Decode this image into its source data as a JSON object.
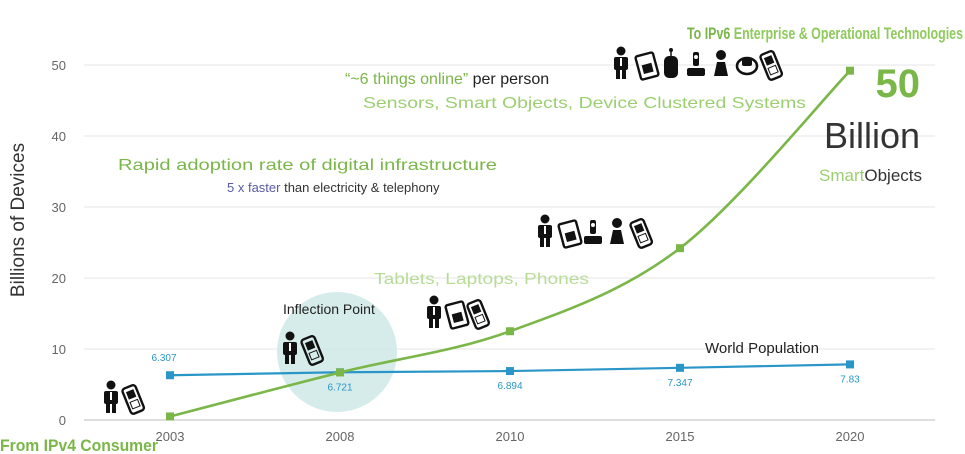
{
  "chart_data": {
    "type": "line",
    "ylabel": "Billions of Devices",
    "ylim": [
      0,
      50
    ],
    "yticks": [
      0,
      10,
      20,
      30,
      40,
      50
    ],
    "categories": [
      "2003",
      "2008",
      "2010",
      "2015",
      "2020"
    ],
    "grid": true,
    "series": [
      {
        "name": "World Population",
        "color": "#2a96c8",
        "values": [
          6.307,
          6.721,
          6.894,
          7.347,
          7.83
        ],
        "labels": [
          "6.307",
          "6.721",
          "6.894",
          "7.347",
          "7.83"
        ]
      },
      {
        "name": "",
        "color": "#7ab648",
        "values": [
          0.5,
          6.7,
          12.5,
          24.2,
          49.2
        ]
      }
    ]
  },
  "annotations": {
    "top_right": {
      "prefix": "To IPv6",
      "rest": " Enterprise & Operational Technologies"
    },
    "bottom_left": "From IPv4 Consumer",
    "six_things_quote": "“~6 things online”",
    "six_things_rest": " per person",
    "sensors": "Sensors, Smart Objects, Device Clustered Systems",
    "rapid_adoption": "Rapid adoption rate of digital infrastructure",
    "faster_highlight": "5 x faster",
    "faster_rest": " than electricity & telephony",
    "tablets": "Tablets, Laptops, Phones",
    "inflection": "Inflection Point",
    "world_population": "World Population",
    "big_number": "50",
    "billion": "Billion",
    "smart": "Smart",
    "objects": "Objects"
  },
  "colors": {
    "green": "#7ab648",
    "blue": "#2a96c8",
    "purple": "#5a5aa8",
    "bubble": "#cfe9e7"
  },
  "icons": {
    "group_2003": [
      "person-icon",
      "phone-icon"
    ],
    "group_2008": [
      "person-icon",
      "phone-icon"
    ],
    "group_2010": [
      "person-icon",
      "tablet-icon",
      "phone-icon"
    ],
    "group_2015": [
      "person-icon",
      "tablet-icon",
      "camera-icon",
      "pawn-icon",
      "phone-icon"
    ],
    "group_2020": [
      "person-icon",
      "tablet-icon",
      "sensor-icon",
      "camera-icon",
      "pawn-icon",
      "watch-icon",
      "phone-icon"
    ]
  }
}
